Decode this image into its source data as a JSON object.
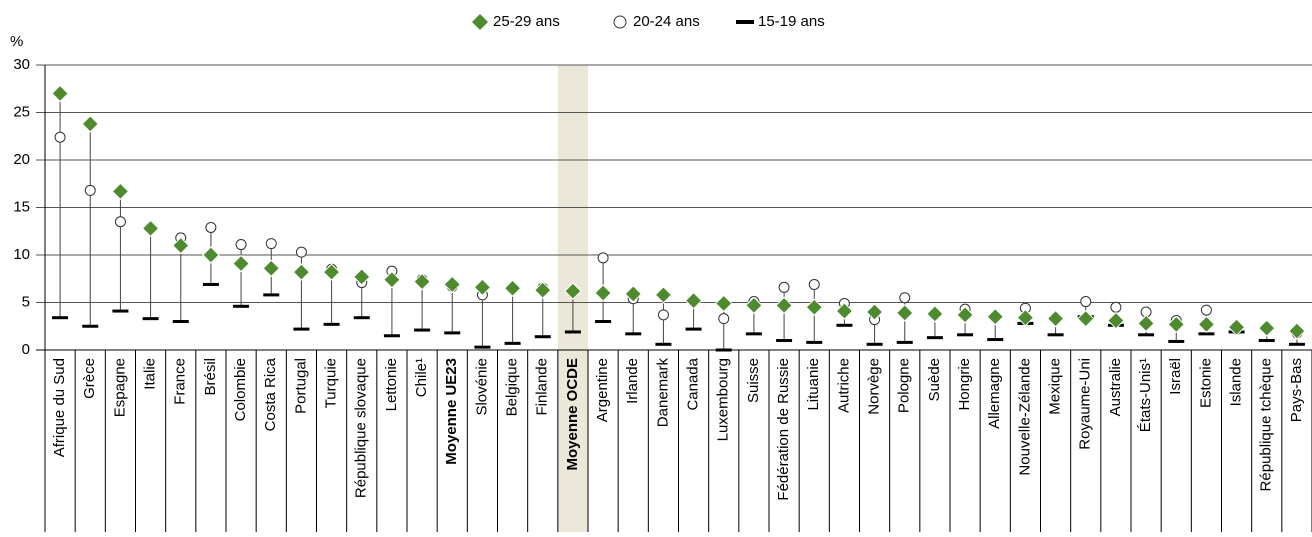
{
  "chart_data": {
    "type": "range-dot",
    "y_label": "%",
    "categories": [
      "Afrique du Sud",
      "Grèce",
      "Espagne",
      "Italie",
      "France",
      "Brésil",
      "Colombie",
      "Costa Rica",
      "Portugal",
      "Turquie",
      "République slovaque",
      "Lettonie",
      "Chile¹",
      "Moyenne UE23",
      "Slovénie",
      "Belgique",
      "Finlande",
      "Moyenne OCDE",
      "Argentine",
      "Irlande",
      "Danemark",
      "Canada",
      "Luxembourg",
      "Suisse",
      "Fédération de Russie",
      "Lituanie",
      "Autriche",
      "Norvège",
      "Pologne",
      "Suède",
      "Hongrie",
      "Allemagne",
      "Nouvelle-Zélande",
      "Mexique",
      "Royaume-Uni",
      "Australie",
      "États-Unis¹",
      "Israël",
      "Estonie",
      "Islande",
      "République tchèque",
      "Pays-Bas"
    ],
    "series": [
      {
        "name": "25-29 ans",
        "marker": "diamond",
        "color": "#4e8a2e",
        "values": [
          27.0,
          23.8,
          16.7,
          12.8,
          11.0,
          10.0,
          9.1,
          8.6,
          8.2,
          8.2,
          7.7,
          7.4,
          7.2,
          6.9,
          6.6,
          6.5,
          6.3,
          6.2,
          6.0,
          5.9,
          5.8,
          5.2,
          4.9,
          4.7,
          4.7,
          4.5,
          4.1,
          4.0,
          3.9,
          3.8,
          3.7,
          3.5,
          3.4,
          3.3,
          3.3,
          3.1,
          2.8,
          2.7,
          2.7,
          2.4,
          2.3,
          2.0
        ]
      },
      {
        "name": "20-24 ans",
        "marker": "circle",
        "color": "#ffffff",
        "values": [
          22.4,
          16.8,
          13.5,
          12.9,
          11.8,
          12.9,
          11.1,
          11.2,
          10.3,
          8.5,
          7.1,
          8.3,
          7.4,
          6.7,
          5.8,
          6.5,
          6.5,
          6.1,
          9.7,
          5.4,
          3.7,
          5.2,
          3.3,
          5.1,
          6.6,
          6.9,
          4.9,
          3.2,
          5.5,
          3.9,
          4.3,
          3.4,
          4.4,
          3.4,
          5.1,
          4.5,
          4.0,
          3.1,
          4.2,
          2.2,
          2.4,
          1.8
        ]
      },
      {
        "name": "15-19 ans",
        "marker": "dash",
        "color": "#000000",
        "values": [
          3.4,
          2.5,
          4.1,
          3.3,
          3.0,
          6.9,
          4.6,
          5.8,
          2.2,
          2.7,
          3.4,
          1.5,
          2.1,
          1.8,
          0.3,
          0.7,
          1.4,
          1.9,
          3.0,
          1.7,
          0.6,
          2.2,
          0.0,
          1.7,
          1.0,
          0.8,
          2.6,
          0.6,
          0.8,
          1.3,
          1.6,
          1.1,
          2.8,
          1.6,
          3.5,
          2.6,
          1.6,
          0.9,
          1.7,
          1.9,
          1.0,
          0.6
        ]
      }
    ],
    "ylim": [
      0,
      30
    ],
    "yticks": [
      0,
      5,
      10,
      15,
      20,
      25,
      30
    ],
    "grid": true,
    "legend": "top",
    "highlight_index": 17,
    "bold_indices": [
      13,
      17
    ]
  }
}
